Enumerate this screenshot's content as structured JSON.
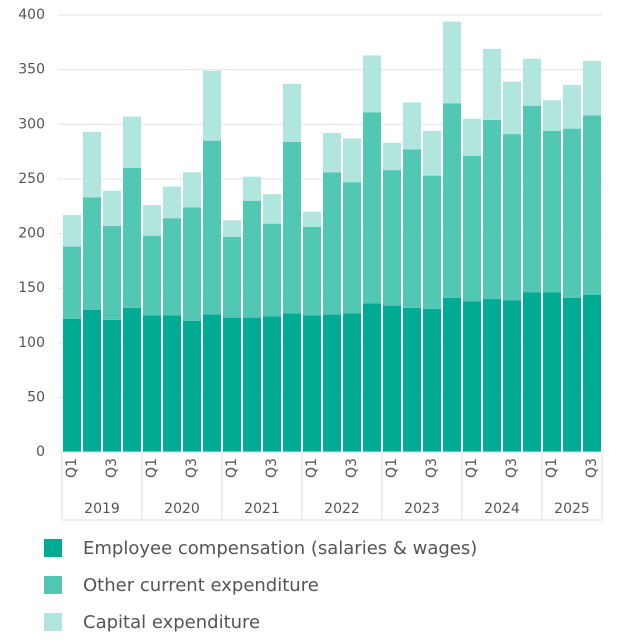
{
  "chart_data": {
    "type": "stacked_bar",
    "categories": [
      "Q1",
      null,
      "Q3",
      null,
      "Q1",
      null,
      "Q3",
      null,
      "Q1",
      null,
      "Q3",
      null,
      "Q1",
      null,
      "Q3",
      null,
      "Q1",
      null,
      "Q3",
      null,
      "Q1",
      null,
      "Q3",
      null,
      "Q1",
      null,
      "Q3"
    ],
    "category_groups": [
      "2019",
      "2020",
      "2021",
      "2022",
      "2023",
      "2024",
      "2025"
    ],
    "series": [
      {
        "name": "Employee compensation (salaries & wages)",
        "color": "#00ab94",
        "values": [
          122,
          130,
          121,
          132,
          125,
          125,
          120,
          126,
          123,
          123,
          124,
          127,
          125,
          126,
          127,
          136,
          134,
          132,
          131,
          141,
          138,
          140,
          139,
          146,
          146,
          141,
          144
        ]
      },
      {
        "name": "Other current expenditure",
        "color": "#52c7b3",
        "values": [
          66,
          103,
          86,
          128,
          73,
          89,
          104,
          159,
          74,
          107,
          85,
          157,
          81,
          130,
          120,
          175,
          124,
          145,
          122,
          178,
          133,
          164,
          152,
          171,
          148,
          155,
          164
        ]
      },
      {
        "name": "Capital expenditure",
        "color": "#b0e6dd",
        "values": [
          29,
          60,
          32,
          47,
          28,
          29,
          32,
          64,
          15,
          22,
          27,
          53,
          14,
          36,
          40,
          52,
          25,
          43,
          41,
          75,
          34,
          65,
          48,
          43,
          28,
          40,
          50
        ]
      }
    ],
    "ylim": [
      0,
      400
    ],
    "yticks": [
      0,
      50,
      100,
      150,
      200,
      250,
      300,
      350,
      400
    ],
    "grid": true
  }
}
